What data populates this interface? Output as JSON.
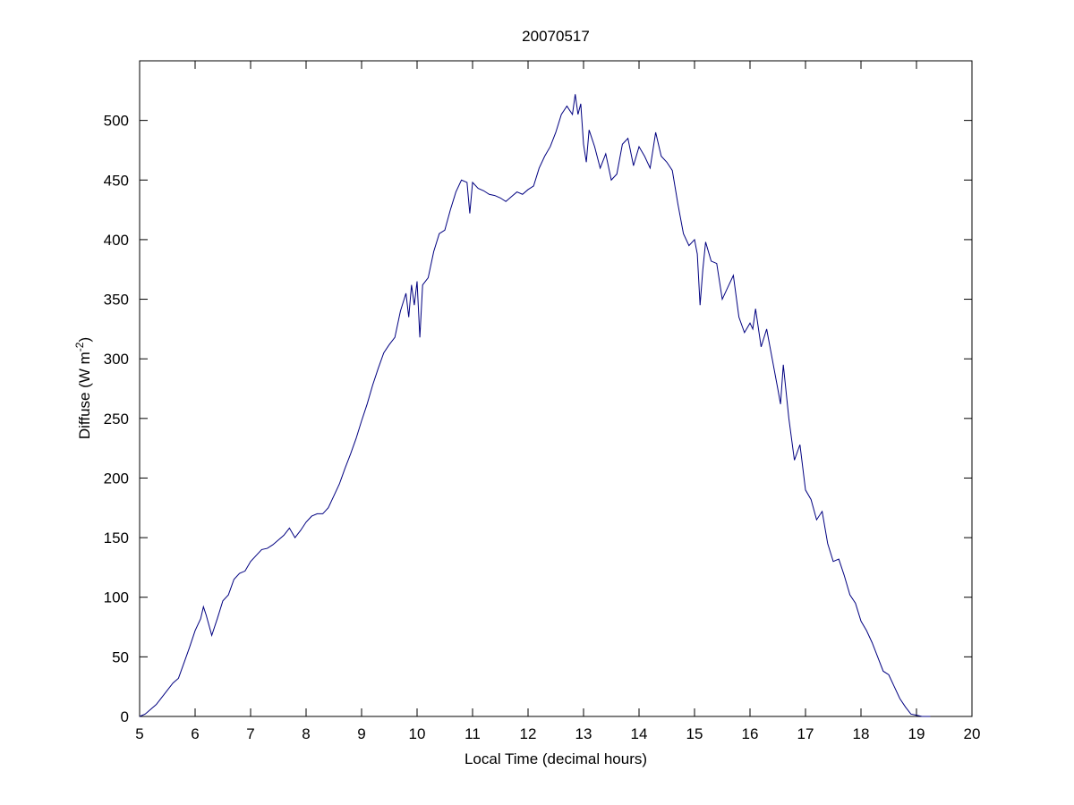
{
  "chart_data": {
    "type": "line",
    "title": "20070517",
    "xlabel": "Local Time (decimal hours)",
    "ylabel": {
      "text": "Diffuse (W m",
      "superscript": "-2",
      "suffix": ")"
    },
    "xlim": [
      5,
      20
    ],
    "ylim": [
      0,
      550
    ],
    "xticks": [
      5,
      6,
      7,
      8,
      9,
      10,
      11,
      12,
      13,
      14,
      15,
      16,
      17,
      18,
      19,
      20
    ],
    "yticks": [
      0,
      50,
      100,
      150,
      200,
      250,
      300,
      350,
      400,
      450,
      500
    ],
    "grid": false,
    "series": [
      {
        "color": "#000080",
        "x": [
          5.0,
          5.1,
          5.2,
          5.3,
          5.4,
          5.5,
          5.6,
          5.7,
          5.8,
          5.9,
          6.0,
          6.1,
          6.15,
          6.2,
          6.3,
          6.4,
          6.5,
          6.6,
          6.7,
          6.8,
          6.9,
          7.0,
          7.1,
          7.2,
          7.3,
          7.4,
          7.5,
          7.6,
          7.7,
          7.8,
          7.9,
          8.0,
          8.1,
          8.2,
          8.3,
          8.4,
          8.5,
          8.6,
          8.7,
          8.8,
          8.9,
          9.0,
          9.1,
          9.2,
          9.3,
          9.4,
          9.5,
          9.6,
          9.7,
          9.8,
          9.85,
          9.9,
          9.95,
          10.0,
          10.05,
          10.1,
          10.2,
          10.3,
          10.4,
          10.5,
          10.6,
          10.7,
          10.8,
          10.9,
          10.95,
          11.0,
          11.1,
          11.2,
          11.3,
          11.4,
          11.5,
          11.6,
          11.7,
          11.8,
          11.9,
          12.0,
          12.1,
          12.2,
          12.3,
          12.4,
          12.5,
          12.6,
          12.7,
          12.8,
          12.85,
          12.9,
          12.95,
          13.0,
          13.05,
          13.1,
          13.2,
          13.3,
          13.4,
          13.5,
          13.6,
          13.7,
          13.8,
          13.9,
          14.0,
          14.1,
          14.2,
          14.3,
          14.4,
          14.5,
          14.6,
          14.7,
          14.8,
          14.9,
          15.0,
          15.05,
          15.1,
          15.15,
          15.2,
          15.3,
          15.4,
          15.5,
          15.6,
          15.7,
          15.8,
          15.9,
          16.0,
          16.05,
          16.1,
          16.2,
          16.3,
          16.4,
          16.5,
          16.55,
          16.6,
          16.7,
          16.8,
          16.9,
          17.0,
          17.1,
          17.2,
          17.3,
          17.4,
          17.5,
          17.6,
          17.7,
          17.8,
          17.9,
          18.0,
          18.1,
          18.2,
          18.3,
          18.4,
          18.5,
          18.6,
          18.7,
          18.8,
          18.9,
          19.0,
          19.1,
          19.2,
          19.25
        ],
        "values": [
          0,
          2,
          6,
          10,
          16,
          22,
          28,
          32,
          45,
          58,
          72,
          82,
          92,
          85,
          68,
          82,
          97,
          102,
          115,
          120,
          122,
          130,
          135,
          140,
          141,
          144,
          148,
          152,
          158,
          150,
          156,
          163,
          168,
          170,
          170,
          175,
          185,
          195,
          208,
          220,
          233,
          248,
          262,
          278,
          292,
          305,
          312,
          318,
          340,
          355,
          335,
          362,
          345,
          365,
          318,
          362,
          368,
          390,
          405,
          408,
          425,
          440,
          450,
          448,
          422,
          448,
          443,
          441,
          438,
          437,
          435,
          432,
          436,
          440,
          438,
          442,
          445,
          460,
          470,
          478,
          490,
          505,
          512,
          505,
          522,
          505,
          514,
          480,
          465,
          492,
          478,
          460,
          472,
          450,
          455,
          480,
          485,
          462,
          478,
          470,
          460,
          490,
          470,
          465,
          458,
          430,
          405,
          395,
          400,
          388,
          345,
          375,
          398,
          382,
          380,
          350,
          360,
          370,
          335,
          322,
          330,
          325,
          342,
          310,
          325,
          300,
          275,
          262,
          295,
          250,
          215,
          228,
          190,
          182,
          165,
          172,
          145,
          130,
          132,
          118,
          102,
          95,
          80,
          72,
          62,
          50,
          38,
          35,
          25,
          15,
          8,
          2,
          1,
          0,
          0,
          0
        ]
      }
    ]
  }
}
